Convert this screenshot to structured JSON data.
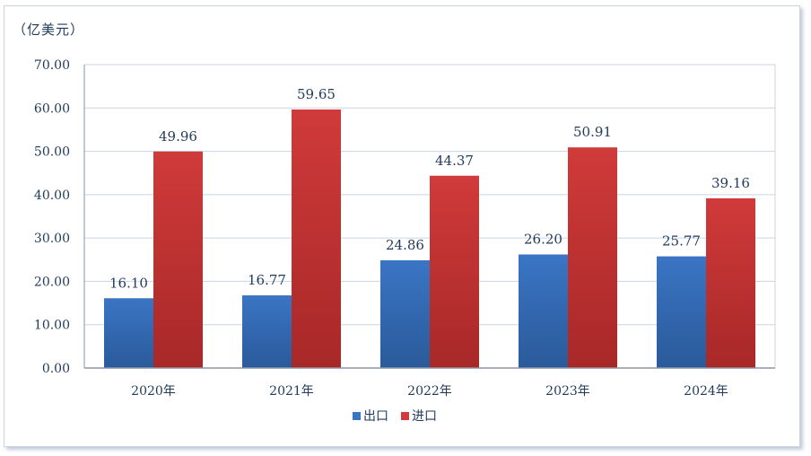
{
  "chart_data": {
    "type": "bar",
    "unit_label": "（亿美元）",
    "categories": [
      "2020年",
      "2021年",
      "2022年",
      "2023年",
      "2024年"
    ],
    "series": [
      {
        "name": "出口",
        "values": [
          16.1,
          16.77,
          24.86,
          26.2,
          25.77
        ],
        "color": "#3a75c4",
        "color_dark": "#2a5a9a"
      },
      {
        "name": "进口",
        "values": [
          49.96,
          59.65,
          44.37,
          50.91,
          39.16
        ],
        "color": "#d03a3a",
        "color_dark": "#a82828"
      }
    ],
    "y_ticks": [
      "0.00",
      "10.00",
      "20.00",
      "30.00",
      "40.00",
      "50.00",
      "60.00",
      "70.00"
    ],
    "ylim": [
      0,
      70
    ],
    "grid": true,
    "legend_position": "bottom-center"
  }
}
